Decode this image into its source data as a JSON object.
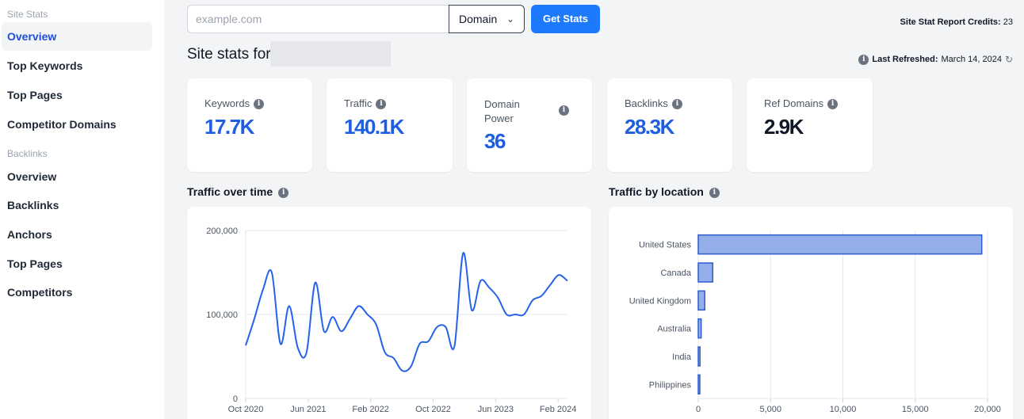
{
  "sidebar": {
    "site_stats_heading": "Site Stats",
    "site_items": [
      "Overview",
      "Top Keywords",
      "Top Pages",
      "Competitor Domains"
    ],
    "backlinks_heading": "Backlinks",
    "backlink_items": [
      "Overview",
      "Backlinks",
      "Anchors",
      "Top Pages",
      "Competitors"
    ]
  },
  "search": {
    "placeholder": "example.com",
    "value": ""
  },
  "domain_select": {
    "selected": "Domain"
  },
  "get_stats_label": "Get Stats",
  "credits": {
    "label": "Site Stat Report Credits:",
    "value": "23"
  },
  "site_stats_for": "Site stats for:",
  "refresh": {
    "label": "Last Refreshed:",
    "date": "March 14, 2024"
  },
  "stats": [
    {
      "label": "Keywords",
      "value": "17.7K"
    },
    {
      "label": "Traffic",
      "value": "140.1K"
    },
    {
      "label": "Domain Power",
      "value": "36"
    },
    {
      "label": "Backlinks",
      "value": "28.3K"
    },
    {
      "label": "Ref Domains",
      "value": "2.9K"
    }
  ],
  "traffic_over_time_title": "Traffic over time",
  "traffic_by_location_title": "Traffic by location",
  "chart_data": [
    {
      "type": "line",
      "y_ticks": [
        "200,000",
        "100,000",
        "0"
      ],
      "ylim": [
        0,
        200000
      ],
      "x_ticks": [
        "Oct 2020",
        "Jun 2021",
        "Feb 2022",
        "Oct 2022",
        "Jun 2023",
        "Feb 2024"
      ],
      "grid": "horizontal",
      "color": "#2563eb",
      "series": [
        {
          "values": [
            63000,
            95000,
            130000,
            150000,
            65000,
            110000,
            60000,
            55000,
            138000,
            80000,
            97000,
            80000,
            95000,
            110000,
            100000,
            88000,
            55000,
            48000,
            33000,
            38000,
            65000,
            68000,
            85000,
            85000,
            62000,
            173000,
            105000,
            140000,
            132000,
            120000,
            100000,
            100000,
            100000,
            117000,
            122000,
            135000,
            147000,
            140000
          ]
        }
      ]
    },
    {
      "type": "bar",
      "orientation": "horizontal",
      "categories": [
        "United States",
        "Canada",
        "United Kingdom",
        "Australia",
        "India",
        "Philippines"
      ],
      "values": [
        19600,
        1000,
        450,
        200,
        120,
        80
      ],
      "x_ticks": [
        "0",
        "5,000",
        "10,000",
        "15,000",
        "20,000"
      ],
      "xlim": [
        0,
        20000
      ],
      "grid": "vertical",
      "color": "#93aee8"
    }
  ]
}
